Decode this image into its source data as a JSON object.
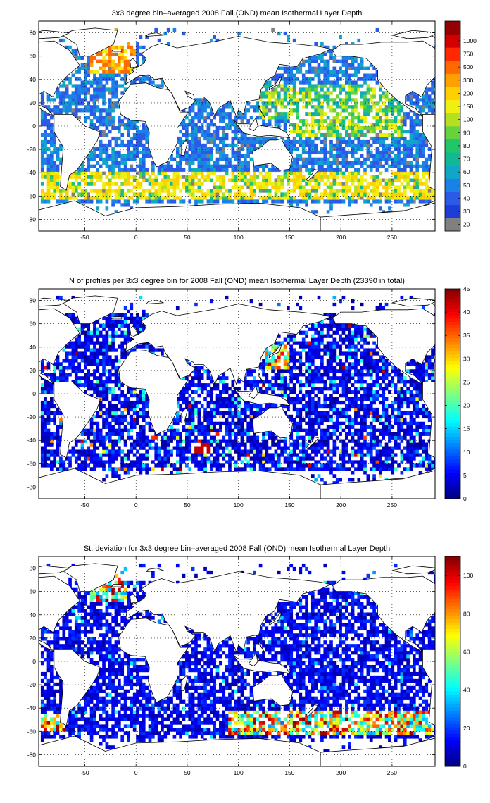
{
  "panels": [
    {
      "id": "mean",
      "title": "3x3 degree bin–averaged 2008 Fall (OND) mean Isothermal Layer Depth",
      "colorbar_type": "discrete",
      "colorbar_labels": [
        "20",
        "30",
        "40",
        "50",
        "60",
        "70",
        "80",
        "90",
        "100",
        "150",
        "200",
        "300",
        "500",
        "750",
        "1000"
      ],
      "colorbar_colors": [
        "#808080",
        "#1e3cd6",
        "#2a5ae8",
        "#1a82e6",
        "#10a6c8",
        "#10b896",
        "#22c66a",
        "#66d23c",
        "#b4e022",
        "#f0f010",
        "#ffd000",
        "#ffa000",
        "#ff6a00",
        "#ff2800",
        "#d40000",
        "#960000"
      ],
      "lowest_color_label": "gray"
    },
    {
      "id": "count",
      "title": "N of profiles per 3x3 degree bin for 2008 Fall (OND) mean Isothermal Layer Depth  (23390 in total)",
      "colorbar_type": "continuous",
      "colorbar_labels": [
        "0",
        "5",
        "10",
        "15",
        "20",
        "25",
        "30",
        "35",
        "40",
        "45"
      ],
      "cmin": 0,
      "cmax": 45
    },
    {
      "id": "stdev",
      "title": "St. deviation for 3x3 degree bin–averaged 2008 Fall (OND) mean Isothermal Layer Depth",
      "colorbar_type": "continuous",
      "colorbar_labels": [
        "0",
        "20",
        "40",
        "60",
        "80",
        "100"
      ],
      "cmin": 0,
      "cmax": 110
    }
  ],
  "axes": {
    "xticks": [
      "-50",
      "0",
      "50",
      "100",
      "150",
      "200",
      "250"
    ],
    "yticks": [
      "80",
      "60",
      "40",
      "20",
      "0",
      "-20",
      "-40",
      "-60",
      "-80"
    ],
    "xlim": [
      -95,
      292
    ],
    "ylim": [
      -90,
      90
    ],
    "grid": "dotted"
  },
  "chart_data": {
    "type": "heatmap",
    "grid": "3x3 degree bins",
    "colormap": "jet",
    "note_values": "Per-bin values estimated visually by color: mean layer depth mostly 30-60 m in open ocean, 70-150 m in Southern Ocean band (40S-60S) and subtropical Pacific, up to 200+ m in North Atlantic near 60N; profile counts mostly 1-10 per bin, 20-45 near Japan and south Indian Ocean; standard deviation mostly 5-20 m, 60-110 m in Southern Ocean band and North Atlantic near 60N.",
    "total_profiles": 23390
  }
}
